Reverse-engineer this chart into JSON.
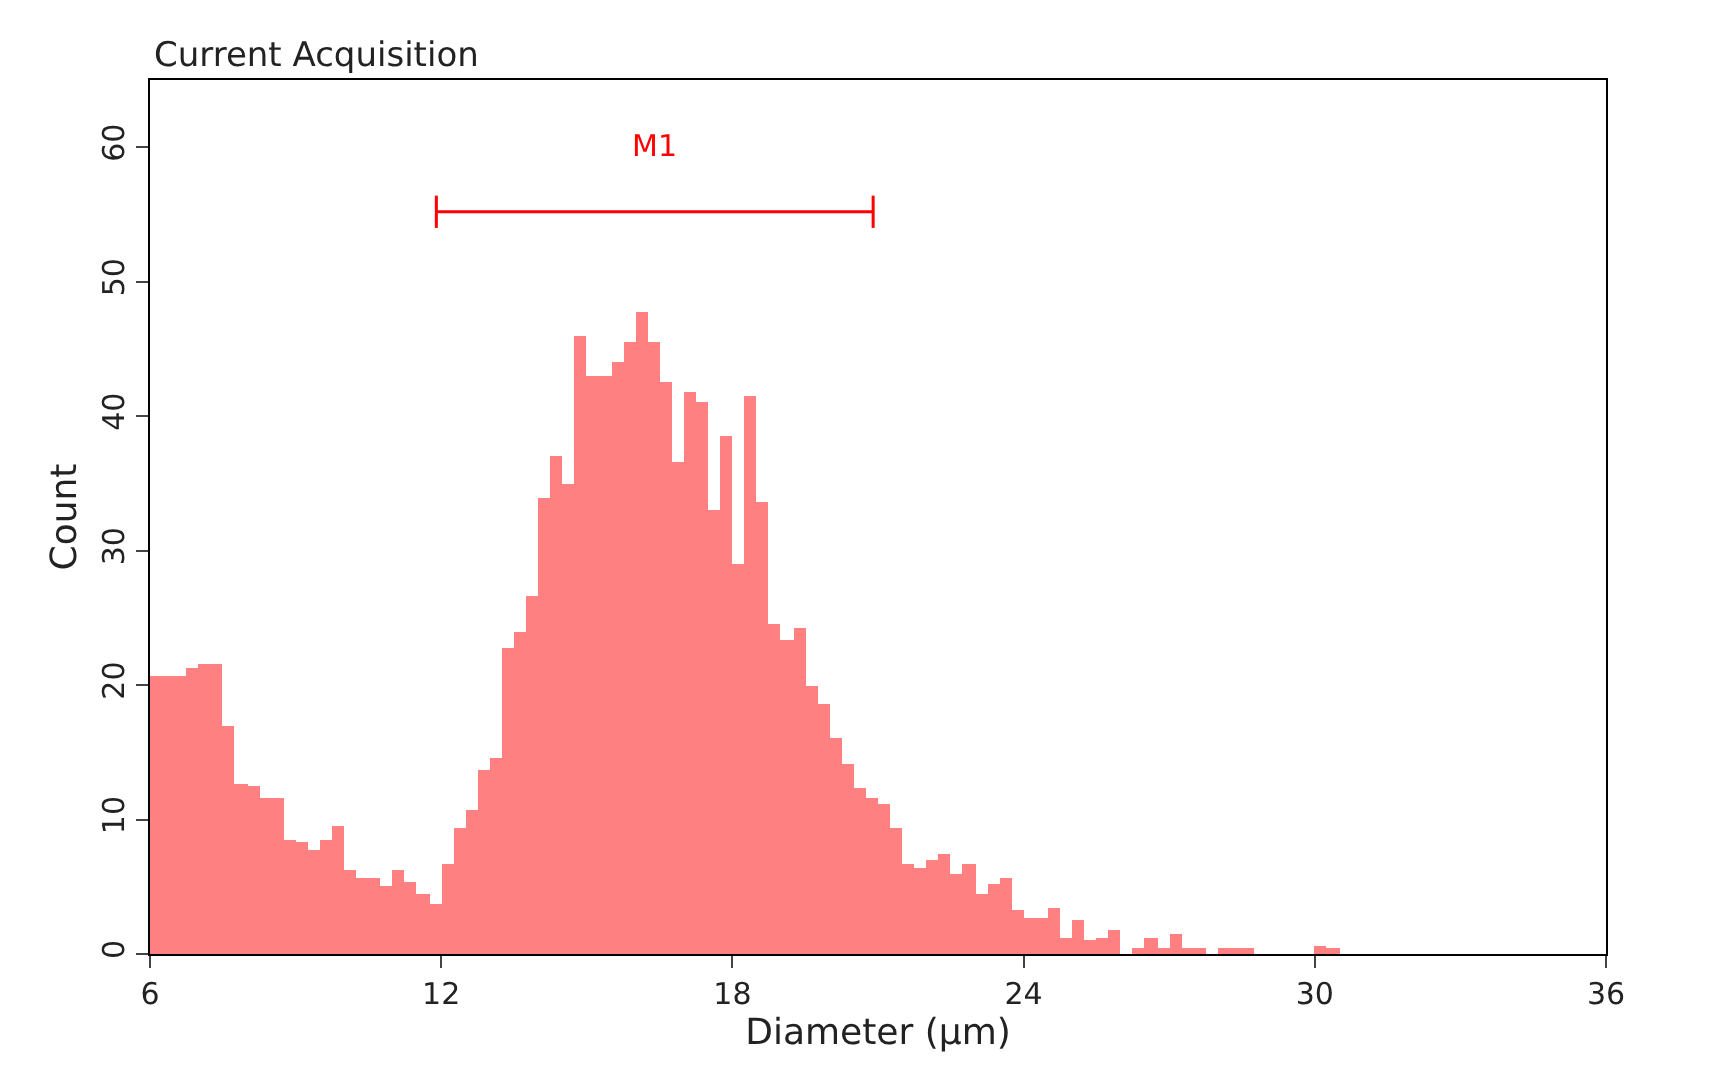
{
  "chart_data": {
    "type": "histogram",
    "title": "Current Acquisition",
    "xlabel": "Diameter (µm)",
    "ylabel": "Count",
    "color": "#ff8080",
    "bins": [
      6,
      6.25,
      6.5,
      6.75,
      7,
      7.25,
      7.5,
      7.75,
      8,
      8.25,
      8.5,
      8.75,
      9,
      9.25,
      9.5,
      9.75,
      10,
      10.25,
      10.5,
      10.75,
      11,
      11.25,
      11.5,
      11.75,
      12,
      12.25,
      12.5,
      12.75,
      13,
      13.25,
      13.5,
      13.75,
      14,
      14.25,
      14.5,
      14.75,
      15,
      15.25,
      15.5,
      15.75,
      16,
      16.25,
      16.5,
      16.75,
      17,
      17.25,
      17.5,
      17.75,
      18,
      18.25,
      18.5,
      18.75,
      19,
      19.25,
      19.5,
      19.75,
      20,
      20.25,
      20.5,
      20.75,
      21,
      21.25,
      21.5,
      21.75,
      22,
      22.25,
      22.5,
      22.75,
      23,
      23.25,
      23.5,
      23.75,
      24,
      24.25,
      24.5,
      24.75,
      25,
      25.25,
      25.5,
      25.75,
      26,
      26.25,
      26.5,
      26.75,
      27,
      27.25,
      27.5,
      27.75,
      28,
      28.25,
      28.5,
      28.75,
      29,
      29.25,
      29.5,
      29.75,
      30,
      30.25,
      30.5
    ],
    "values": [
      20.7,
      20.7,
      20.7,
      21.3,
      21.5,
      21.5,
      17,
      12.7,
      12.5,
      11.6,
      11.6,
      8.5,
      8.3,
      7.8,
      8.5,
      9.5,
      6.2,
      5.7,
      5.7,
      5,
      6.3,
      5.3,
      4.5,
      3.7,
      6.7,
      9.3,
      10.7,
      13.7,
      14.6,
      22.7,
      24,
      26.6,
      33.9,
      37,
      35,
      46,
      43,
      43,
      44,
      45.5,
      47.8,
      45.5,
      42.5,
      36.6,
      41.8,
      41,
      33,
      38.5,
      29,
      41.5,
      33.6,
      24.6,
      23.4,
      24.3,
      20,
      18.6,
      16,
      14.2,
      12.4,
      11.6,
      11.2,
      9.3,
      6.7,
      6.4,
      7,
      7.5,
      6,
      6.7,
      4.5,
      5.2,
      5.7,
      3.3,
      2.7,
      2.7,
      3.4,
      1.2,
      2.5,
      1,
      1.2,
      1.8,
      0,
      0.5,
      1.2,
      0.5,
      1.5,
      0.4,
      0.4,
      0,
      0.5,
      0.4,
      0.5,
      0,
      0,
      0,
      0,
      0,
      0.6,
      0.4
    ],
    "xlim": [
      6,
      36
    ],
    "xticks": [
      6,
      12,
      18,
      24,
      30,
      36
    ],
    "ylim": [
      0,
      65
    ],
    "yticks": [
      0,
      10,
      20,
      30,
      40,
      50,
      60
    ],
    "grid": false,
    "series": [
      {
        "type": "line",
        "name": "M1",
        "color": "#ff0000",
        "x": [
          11.9,
          20.9
        ],
        "values": [
          55.2,
          55.2
        ],
        "errors": [
          1.2,
          1.2
        ],
        "marker": "none"
      }
    ]
  }
}
